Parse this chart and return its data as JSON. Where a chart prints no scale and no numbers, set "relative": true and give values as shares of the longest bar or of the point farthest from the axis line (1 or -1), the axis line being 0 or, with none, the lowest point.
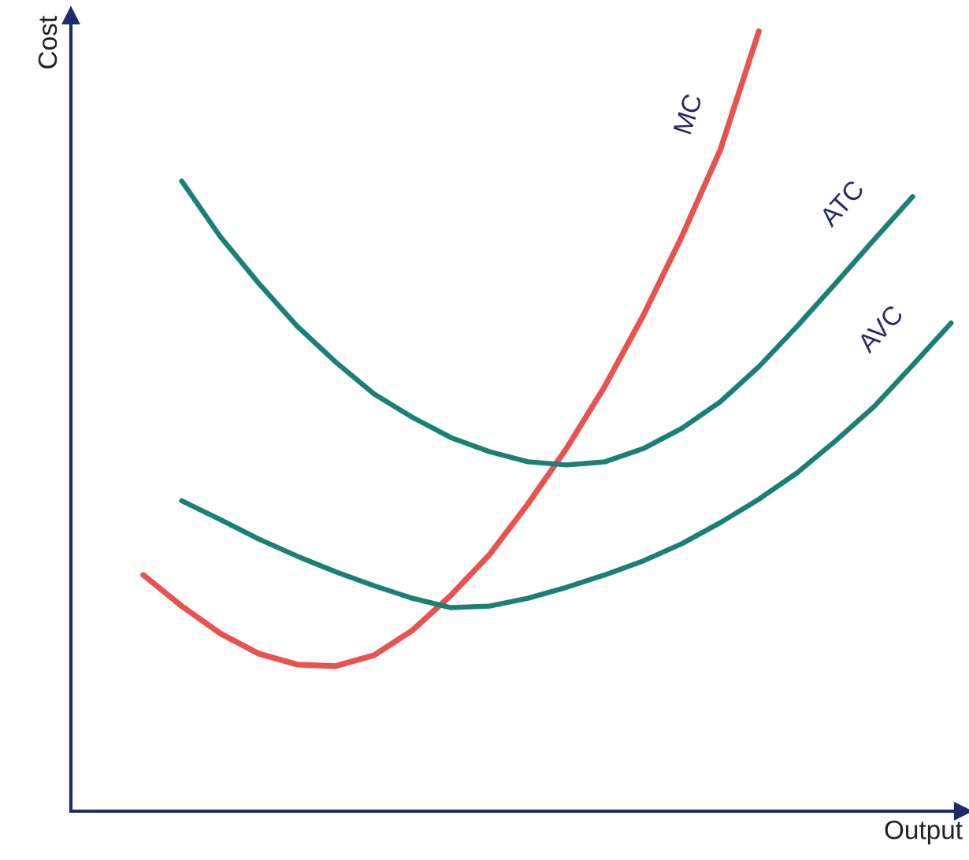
{
  "chart_data": {
    "type": "line",
    "relative": true,
    "xlabel": "Output",
    "ylabel": "Cost",
    "marker": "none",
    "line_style": "solid",
    "categories": [
      null,
      null,
      null,
      null,
      null,
      null,
      null,
      null,
      null,
      null,
      null,
      null,
      null,
      null,
      null,
      null,
      null,
      null,
      null,
      null,
      null,
      null
    ],
    "series": [
      {
        "name": "MC",
        "color": "#e8534f",
        "values": [
          0.303,
          0.263,
          0.228,
          0.202,
          0.188,
          0.186,
          0.2,
          0.232,
          0.277,
          0.329,
          0.394,
          0.465,
          0.545,
          0.636,
          0.737,
          0.848,
          1.0,
          null,
          null,
          null,
          null,
          null
        ]
      },
      {
        "name": "ATC",
        "color": "#1a8075",
        "values": [
          null,
          0.808,
          0.737,
          0.677,
          0.622,
          0.576,
          0.535,
          0.505,
          0.479,
          0.461,
          0.448,
          0.444,
          0.448,
          0.465,
          0.491,
          0.525,
          0.57,
          0.622,
          0.677,
          0.733,
          0.788,
          null
        ]
      },
      {
        "name": "AVC",
        "color": "#1a8075",
        "values": [
          null,
          0.398,
          0.374,
          0.349,
          0.327,
          0.307,
          0.289,
          0.273,
          0.261,
          0.263,
          0.273,
          0.287,
          0.303,
          0.321,
          0.343,
          0.37,
          0.4,
          0.434,
          0.475,
          0.519,
          0.572,
          0.626
        ]
      }
    ]
  }
}
